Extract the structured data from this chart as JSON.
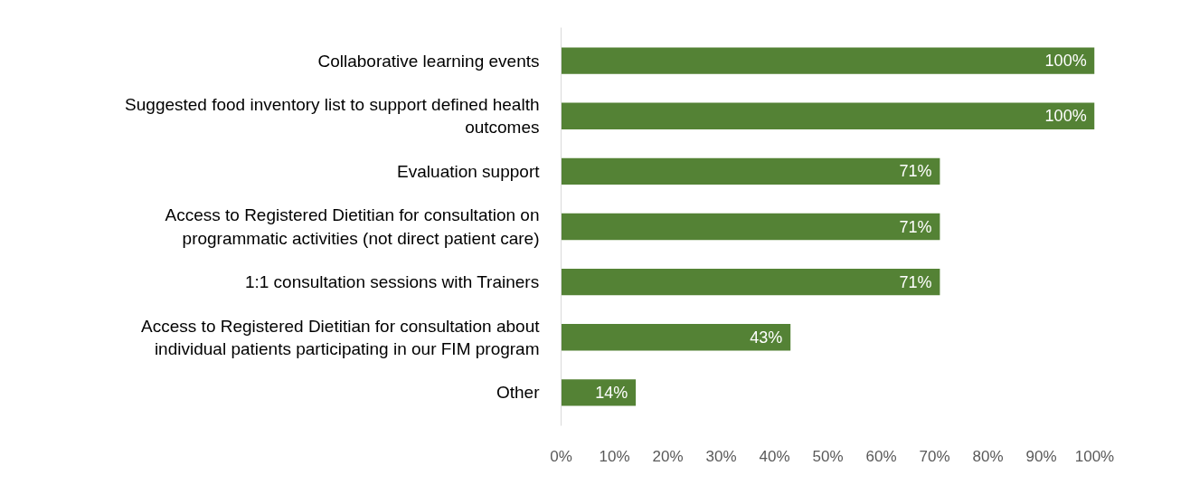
{
  "chart_data": {
    "type": "bar",
    "orientation": "horizontal",
    "categories": [
      "Collaborative learning events",
      "Suggested food inventory list to support defined health\noutcomes",
      "Evaluation support",
      "Access to Registered Dietitian for consultation on\nprogrammatic activities (not direct patient care)",
      "1:1 consultation sessions with Trainers",
      "Access to Registered Dietitian for consultation about\nindividual patients participating in our FIM program",
      "Other"
    ],
    "values": [
      100,
      100,
      71,
      71,
      71,
      43,
      14
    ],
    "value_labels": [
      "100%",
      "100%",
      "71%",
      "71%",
      "71%",
      "43%",
      "14%"
    ],
    "color": "#548235",
    "xlim": [
      0,
      100
    ],
    "xticks": [
      {
        "value": 0,
        "label": "0%"
      },
      {
        "value": 10,
        "label": "10%"
      },
      {
        "value": 20,
        "label": "20%"
      },
      {
        "value": 30,
        "label": "30%"
      },
      {
        "value": 40,
        "label": "40%"
      },
      {
        "value": 50,
        "label": "50%"
      },
      {
        "value": 60,
        "label": "60%"
      },
      {
        "value": 70,
        "label": "70%"
      },
      {
        "value": 80,
        "label": "80%"
      },
      {
        "value": 90,
        "label": "90%"
      },
      {
        "value": 100,
        "label": "100%"
      }
    ],
    "grid": false
  }
}
